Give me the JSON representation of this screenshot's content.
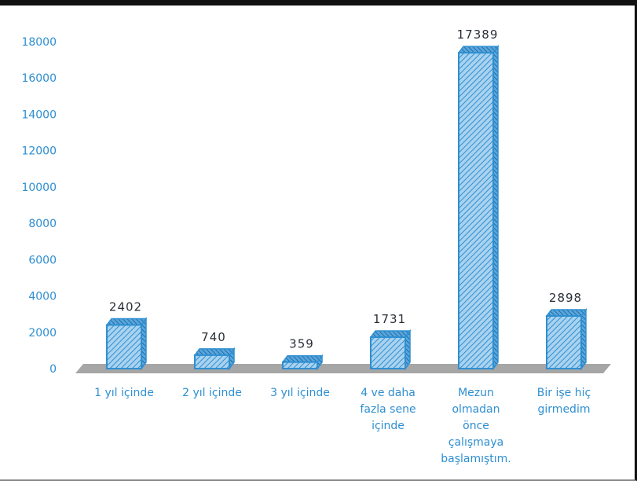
{
  "chart_data": {
    "type": "bar",
    "title": "",
    "xlabel": "",
    "ylabel": "",
    "ylim": [
      0,
      18000
    ],
    "yticks": [
      0,
      2000,
      4000,
      6000,
      8000,
      10000,
      12000,
      14000,
      16000,
      18000
    ],
    "ytick_labels": [
      "0",
      "2000",
      "4000",
      "6000",
      "8000",
      "10000",
      "12000",
      "14000",
      "16000",
      "18000"
    ],
    "categories": [
      "1 yıl içinde",
      "2 yıl içinde",
      "3 yıl içinde",
      "4 ve daha fazla sene içinde",
      "Mezun olmadan önce çalışmaya başlamıştım.",
      "Bir işe hiç girmedim"
    ],
    "category_lines": [
      [
        "1 yıl içinde"
      ],
      [
        "2 yıl içinde"
      ],
      [
        "3 yıl içinde"
      ],
      [
        "4 ve daha",
        "fazla sene",
        "içinde"
      ],
      [
        "Mezun",
        "olmadan",
        "önce",
        "çalışmaya",
        "başlamıştım."
      ],
      [
        "Bir işe hiç",
        "girmedim"
      ]
    ],
    "values": [
      2402,
      740,
      359,
      1731,
      17389,
      2898
    ],
    "value_labels": [
      "2402",
      "740",
      "359",
      "1731",
      "17389",
      "2898"
    ],
    "grid": false,
    "legend": "none",
    "style": "3d-hatched-columns",
    "colors": {
      "bar": "#2e8fd1",
      "bar_fill": "#a9d2ef",
      "floor": "#a6a6a6",
      "tick_text": "#2e8fd1",
      "label_text": "#2a2f36"
    }
  }
}
